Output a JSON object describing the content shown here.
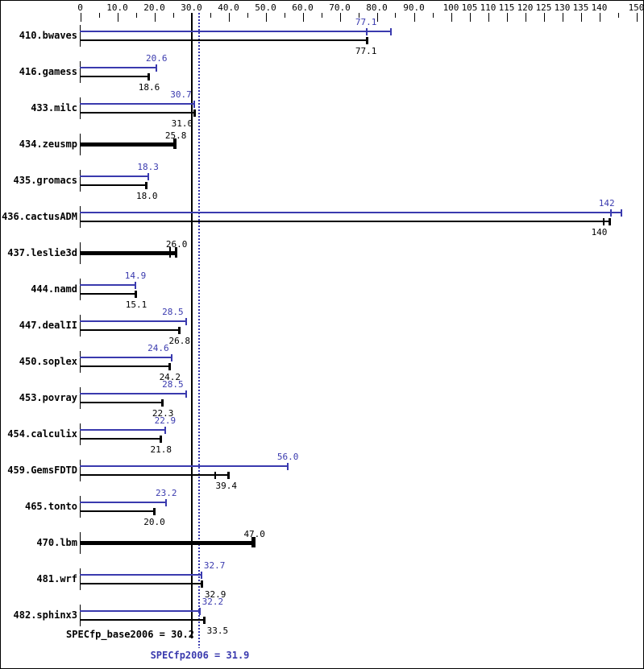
{
  "chart": {
    "colors": {
      "peak": "#3a3aae",
      "base": "#000000",
      "background": "#ffffff",
      "border": "#000000"
    },
    "axis": {
      "range": [
        0,
        150
      ],
      "major": [
        {
          "v": 0,
          "t": "0"
        },
        {
          "v": 10,
          "t": "10.0"
        },
        {
          "v": 20,
          "t": "20.0"
        },
        {
          "v": 30,
          "t": "30.0"
        },
        {
          "v": 40,
          "t": "40.0"
        },
        {
          "v": 50,
          "t": "50.0"
        },
        {
          "v": 60,
          "t": "60.0"
        },
        {
          "v": 70,
          "t": "70.0"
        },
        {
          "v": 80,
          "t": "80.0"
        },
        {
          "v": 90,
          "t": "90.0"
        },
        {
          "v": 100,
          "t": "100"
        },
        {
          "v": 105,
          "t": "105"
        },
        {
          "v": 110,
          "t": "110"
        },
        {
          "v": 115,
          "t": "115"
        },
        {
          "v": 120,
          "t": "120"
        },
        {
          "v": 125,
          "t": "125"
        },
        {
          "v": 130,
          "t": "130"
        },
        {
          "v": 135,
          "t": "135"
        },
        {
          "v": 140,
          "t": "140"
        },
        {
          "v": 150,
          "t": "150"
        }
      ],
      "minor": [
        5,
        15,
        25,
        35,
        45,
        55,
        65,
        75,
        85,
        95,
        145
      ]
    },
    "rows": [
      {
        "name": "410.bwaves",
        "peak": {
          "v": 77.1,
          "label": "77.1",
          "end": 83.7,
          "tick": 77.1
        },
        "base": {
          "v": 77.1,
          "label": "77.1",
          "end": 77.6
        }
      },
      {
        "name": "416.gamess",
        "peak": {
          "v": 20.6,
          "label": "20.6"
        },
        "base": {
          "v": 18.6,
          "label": "18.6"
        }
      },
      {
        "name": "433.milc",
        "peak": {
          "v": 30.7,
          "label": "30.7",
          "align": "right"
        },
        "base": {
          "v": 31.0,
          "label": "31.0",
          "align": "right"
        }
      },
      {
        "name": "434.zeusmp",
        "single": {
          "v": 25.8,
          "label": "25.8",
          "tick": 25.0
        }
      },
      {
        "name": "435.gromacs",
        "peak": {
          "v": 18.3,
          "label": "18.3"
        },
        "base": {
          "v": 18.0,
          "label": "18.0"
        }
      },
      {
        "name": "436.cactusADM",
        "peak": {
          "v": 142,
          "label": "142",
          "end": 146,
          "tick": 143
        },
        "base": {
          "v": 140,
          "label": "140",
          "end": 143,
          "tick": 141
        }
      },
      {
        "name": "437.leslie3d",
        "single": {
          "v": 26.0,
          "label": "26.0",
          "tick": 24.1
        }
      },
      {
        "name": "444.namd",
        "peak": {
          "v": 14.9,
          "label": "14.9"
        },
        "base": {
          "v": 15.1,
          "label": "15.1"
        }
      },
      {
        "name": "447.dealII",
        "peak": {
          "v": 28.5,
          "label": "28.5",
          "align": "right"
        },
        "base": {
          "v": 26.8,
          "label": "26.8"
        }
      },
      {
        "name": "450.soplex",
        "peak": {
          "v": 24.6,
          "label": "24.6",
          "align": "right"
        },
        "base": {
          "v": 24.2,
          "label": "24.2"
        }
      },
      {
        "name": "453.povray",
        "peak": {
          "v": 28.5,
          "label": "28.5",
          "align": "right"
        },
        "base": {
          "v": 22.3,
          "label": "22.3"
        }
      },
      {
        "name": "454.calculix",
        "peak": {
          "v": 22.9,
          "label": "22.9"
        },
        "base": {
          "v": 21.8,
          "label": "21.8"
        }
      },
      {
        "name": "459.GemsFDTD",
        "peak": {
          "v": 56.0,
          "label": "56.0"
        },
        "base": {
          "v": 39.4,
          "label": "39.4",
          "end": 40.0,
          "tick": 36.3
        }
      },
      {
        "name": "465.tonto",
        "peak": {
          "v": 23.2,
          "label": "23.2"
        },
        "base": {
          "v": 20.0,
          "label": "20.0"
        }
      },
      {
        "name": "470.lbm",
        "single": {
          "v": 47.0,
          "label": "47.0",
          "tick": 46.3
        }
      },
      {
        "name": "481.wrf",
        "peak": {
          "v": 32.7,
          "label": "32.7",
          "align": "left"
        },
        "base": {
          "v": 32.9,
          "label": "32.9",
          "align": "left"
        }
      },
      {
        "name": "482.sphinx3",
        "peak": {
          "v": 32.2,
          "label": "32.2",
          "align": "left"
        },
        "base": {
          "v": 33.5,
          "label": "33.5",
          "align": "left"
        }
      }
    ],
    "means": {
      "base": {
        "value": 30.2,
        "text": "SPECfp_base2006 = 30.2"
      },
      "peak": {
        "value": 31.9,
        "text": "SPECfp2006 = 31.9"
      }
    }
  },
  "chart_data": {
    "type": "bar",
    "orientation": "horizontal",
    "title": "",
    "xlabel": "",
    "ylabel": "",
    "xlim": [
      0,
      150
    ],
    "grid": false,
    "legend_position": "none",
    "categories": [
      "410.bwaves",
      "416.gamess",
      "433.milc",
      "434.zeusmp",
      "435.gromacs",
      "436.cactusADM",
      "437.leslie3d",
      "444.namd",
      "447.dealII",
      "450.soplex",
      "453.povray",
      "454.calculix",
      "459.GemsFDTD",
      "465.tonto",
      "470.lbm",
      "481.wrf",
      "482.sphinx3"
    ],
    "series": [
      {
        "name": "SPECfp2006",
        "color": "#3a3aae",
        "values": [
          77.1,
          20.6,
          30.7,
          null,
          18.3,
          142,
          null,
          14.9,
          28.5,
          24.6,
          28.5,
          22.9,
          56.0,
          23.2,
          null,
          32.7,
          32.2
        ]
      },
      {
        "name": "SPECfp_base2006",
        "color": "#000000",
        "values": [
          77.1,
          18.6,
          31.0,
          25.8,
          18.0,
          140,
          26.0,
          15.1,
          26.8,
          24.2,
          22.3,
          21.8,
          39.4,
          20.0,
          47.0,
          32.9,
          33.5
        ]
      }
    ],
    "reference_lines": [
      {
        "label": "SPECfp_base2006 = 30.2",
        "value": 30.2,
        "style": "solid",
        "color": "#000000"
      },
      {
        "label": "SPECfp2006 = 31.9",
        "value": 31.9,
        "style": "dotted",
        "color": "#3a3aae"
      }
    ],
    "axis_tick_labels": [
      "0",
      "10.0",
      "20.0",
      "30.0",
      "40.0",
      "50.0",
      "60.0",
      "70.0",
      "80.0",
      "90.0",
      "100",
      "105",
      "110",
      "115",
      "120",
      "125",
      "130",
      "135",
      "140",
      "150"
    ]
  }
}
